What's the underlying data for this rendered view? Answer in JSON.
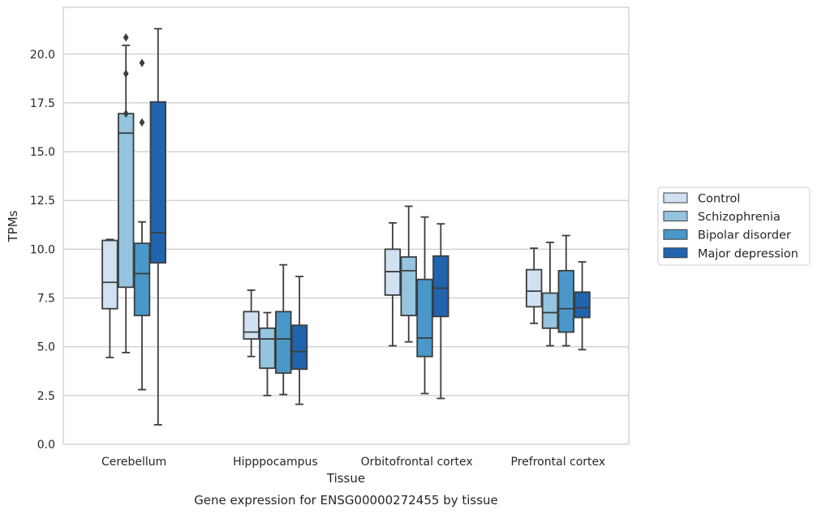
{
  "chart_data": {
    "type": "box",
    "caption": "Gene expression for ENSG00000272455 by tissue",
    "xlabel": "Tissue",
    "ylabel": "TPMs",
    "ylim": [
      0,
      22.4
    ],
    "yticks": [
      "0.0",
      "2.5",
      "5.0",
      "7.5",
      "10.0",
      "12.5",
      "15.0",
      "17.5",
      "20.0"
    ],
    "categories": [
      "Cerebellum",
      "Hipppocampus",
      "Orbitofrontal cortex",
      "Prefrontal cortex"
    ],
    "grid": "horizontal",
    "legend_position": "right",
    "series": [
      {
        "name": "Control",
        "color": "#d0e1f2",
        "boxes": [
          {
            "whislo": 4.45,
            "q1": 6.95,
            "med": 8.3,
            "q3": 10.45,
            "whishi": 10.5,
            "fliers": []
          },
          {
            "whislo": 4.5,
            "q1": 5.4,
            "med": 5.75,
            "q3": 6.8,
            "whishi": 7.9,
            "fliers": []
          },
          {
            "whislo": 5.05,
            "q1": 7.65,
            "med": 8.85,
            "q3": 10.0,
            "whishi": 11.35,
            "fliers": []
          },
          {
            "whislo": 6.2,
            "q1": 7.05,
            "med": 7.85,
            "q3": 8.95,
            "whishi": 10.05,
            "fliers": []
          }
        ]
      },
      {
        "name": "Schizophrenia",
        "color": "#94c4df",
        "boxes": [
          {
            "whislo": 4.7,
            "q1": 8.05,
            "med": 15.95,
            "q3": 16.95,
            "whishi": 20.45,
            "fliers": [
              16.95,
              19.0,
              20.85
            ]
          },
          {
            "whislo": 2.5,
            "q1": 3.9,
            "med": 5.4,
            "q3": 5.95,
            "whishi": 6.75,
            "fliers": []
          },
          {
            "whislo": 5.25,
            "q1": 6.6,
            "med": 8.9,
            "q3": 9.6,
            "whishi": 12.2,
            "fliers": []
          },
          {
            "whislo": 5.05,
            "q1": 5.95,
            "med": 6.75,
            "q3": 7.75,
            "whishi": 10.35,
            "fliers": []
          }
        ]
      },
      {
        "name": "Bipolar disorder",
        "color": "#4a98c9",
        "boxes": [
          {
            "whislo": 2.8,
            "q1": 6.6,
            "med": 8.75,
            "q3": 10.3,
            "whishi": 11.4,
            "fliers": [
              16.5,
              19.55
            ]
          },
          {
            "whislo": 2.55,
            "q1": 3.65,
            "med": 5.4,
            "q3": 6.8,
            "whishi": 9.2,
            "fliers": []
          },
          {
            "whislo": 2.6,
            "q1": 4.5,
            "med": 5.45,
            "q3": 8.45,
            "whishi": 11.65,
            "fliers": []
          },
          {
            "whislo": 5.05,
            "q1": 5.75,
            "med": 6.95,
            "q3": 8.9,
            "whishi": 10.7,
            "fliers": []
          }
        ]
      },
      {
        "name": "Major depression",
        "color": "#2064ae",
        "boxes": [
          {
            "whislo": 1.0,
            "q1": 9.3,
            "med": 10.85,
            "q3": 17.55,
            "whishi": 21.3,
            "fliers": []
          },
          {
            "whislo": 2.05,
            "q1": 3.85,
            "med": 4.75,
            "q3": 6.1,
            "whishi": 8.6,
            "fliers": []
          },
          {
            "whislo": 2.35,
            "q1": 6.55,
            "med": 8.0,
            "q3": 9.65,
            "whishi": 11.3,
            "fliers": []
          },
          {
            "whislo": 4.85,
            "q1": 6.5,
            "med": 7.0,
            "q3": 7.8,
            "whishi": 9.35,
            "fliers": []
          }
        ]
      }
    ]
  }
}
